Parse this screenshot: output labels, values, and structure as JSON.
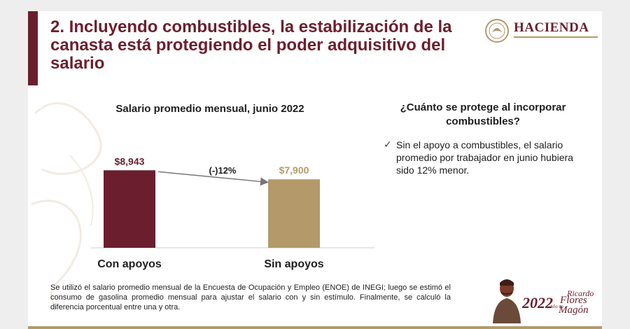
{
  "slide": {
    "title": "2. Incluyendo combustibles, la estabilización de la canasta está protegiendo el poder adquisitivo del salario",
    "logo_text": "HACIENDA"
  },
  "chart_data": {
    "type": "bar",
    "title": "Salario promedio mensual, junio 2022",
    "categories": [
      "Con apoyos",
      "Sin apoyos"
    ],
    "values": [
      8943,
      7900
    ],
    "value_labels": [
      "$8,943",
      "$7,900"
    ],
    "colors": [
      "#6b1f2e",
      "#b49a6a"
    ],
    "annotation": "(-)12%",
    "ylim": [
      0,
      10500
    ]
  },
  "sidebar": {
    "question": "¿Cuánto se protege al incorporar combustibles?",
    "check_icon": "✓",
    "bullet": "Sin el apoyo a combustibles, el salario promedio por trabajador en junio hubiera sido 12% menor."
  },
  "footnote": "Se utilizó el salario promedio mensual de la Encuesta de Ocupación y Empleo (ENOE) de INEGI; luego se estimó el consumo de gasolina promedio mensual para ajustar el salario con y sin estímulo. Finalmente, se calculó la diferencia porcentual entre una y otra.",
  "anniversary": {
    "year": "2022",
    "name_first": "Ricardo",
    "name_mid": "Flores",
    "name_last": "Magón",
    "small": "Año de"
  }
}
